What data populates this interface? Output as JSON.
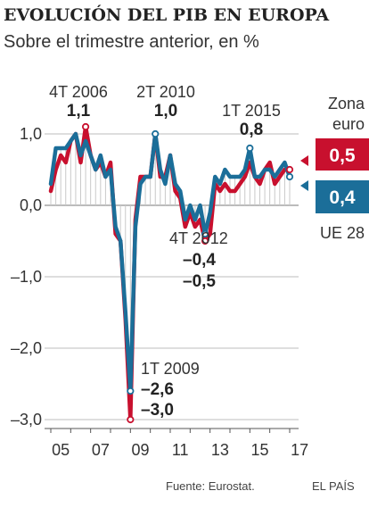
{
  "header": {
    "title": "EVOLUCIÓN DEL PIB EN EUROPA",
    "subtitle": "Sobre el trimestre anterior, en %"
  },
  "footer": {
    "source": "Fuente: Eurostat.",
    "brand": "EL PAÍS"
  },
  "colors": {
    "eurozone": "#c8102e",
    "eu28": "#1b6e99",
    "grid": "#bdbdbd"
  },
  "chart_data": {
    "type": "line",
    "title": "EVOLUCIÓN DEL PIB EN EUROPA",
    "subtitle": "Sobre el trimestre anterior, en %",
    "ylim": [
      -3.0,
      1.0
    ],
    "ytick_labels": [
      "1,0",
      "0,0",
      "–1,0",
      "–2,0",
      "–3,0"
    ],
    "ytick_values": [
      1.0,
      0.0,
      -1.0,
      -2.0,
      -3.0
    ],
    "xtick_labels": [
      "05",
      "07",
      "09",
      "11",
      "13",
      "15",
      "17"
    ],
    "quarters": [
      "1T 2005",
      "2T 2005",
      "3T 2005",
      "4T 2005",
      "1T 2006",
      "2T 2006",
      "3T 2006",
      "4T 2006",
      "1T 2007",
      "2T 2007",
      "3T 2007",
      "4T 2007",
      "1T 2008",
      "2T 2008",
      "3T 2008",
      "4T 2008",
      "1T 2009",
      "2T 2009",
      "3T 2009",
      "4T 2009",
      "1T 2010",
      "2T 2010",
      "3T 2010",
      "4T 2010",
      "1T 2011",
      "2T 2011",
      "3T 2011",
      "4T 2011",
      "1T 2012",
      "2T 2012",
      "3T 2012",
      "4T 2012",
      "1T 2013",
      "2T 2013",
      "3T 2013",
      "4T 2013",
      "1T 2014",
      "2T 2014",
      "3T 2014",
      "4T 2014",
      "1T 2015",
      "2T 2015",
      "3T 2015",
      "4T 2015",
      "1T 2016",
      "2T 2016",
      "3T 2016",
      "4T 2016",
      "1T 2017"
    ],
    "series": [
      {
        "name": "Zona euro",
        "values": [
          0.2,
          0.5,
          0.7,
          0.6,
          0.9,
          1.0,
          0.6,
          1.1,
          0.7,
          0.5,
          0.6,
          0.4,
          0.6,
          -0.4,
          -0.5,
          -1.6,
          -3.0,
          -0.2,
          0.4,
          0.4,
          0.4,
          1.0,
          0.4,
          0.4,
          0.7,
          0.2,
          0.1,
          -0.3,
          -0.1,
          -0.3,
          -0.2,
          -0.5,
          -0.4,
          0.3,
          0.2,
          0.3,
          0.2,
          0.2,
          0.3,
          0.4,
          0.6,
          0.4,
          0.3,
          0.5,
          0.6,
          0.3,
          0.4,
          0.5,
          0.5
        ]
      },
      {
        "name": "UE 28",
        "values": [
          0.3,
          0.8,
          0.8,
          0.8,
          0.9,
          1.0,
          0.7,
          0.9,
          0.7,
          0.5,
          0.7,
          0.4,
          0.5,
          -0.3,
          -0.5,
          -1.5,
          -2.6,
          -0.3,
          0.3,
          0.4,
          0.4,
          1.0,
          0.5,
          0.3,
          0.7,
          0.3,
          0.2,
          -0.2,
          0.0,
          -0.2,
          0.0,
          -0.4,
          -0.1,
          0.4,
          0.3,
          0.5,
          0.4,
          0.4,
          0.4,
          0.5,
          0.8,
          0.4,
          0.4,
          0.5,
          0.5,
          0.4,
          0.5,
          0.6,
          0.4
        ]
      }
    ],
    "annotations": [
      {
        "label": "4T 2006",
        "values": [
          "1,1"
        ]
      },
      {
        "label": "2T 2010",
        "values": [
          "1,0"
        ]
      },
      {
        "label": "1T 2015",
        "values": [
          "0,8"
        ]
      },
      {
        "label": "4T 2012",
        "values": [
          "–0,4",
          "–0,5"
        ]
      },
      {
        "label": "1T 2009",
        "values": [
          "–2,6",
          "–3,0"
        ]
      }
    ],
    "legend": [
      {
        "name": "Zona euro",
        "lines": [
          "Zona",
          "euro"
        ],
        "last_value": "0,5"
      },
      {
        "name": "UE 28",
        "lines": [
          "UE 28"
        ],
        "last_value": "0,4"
      }
    ]
  }
}
